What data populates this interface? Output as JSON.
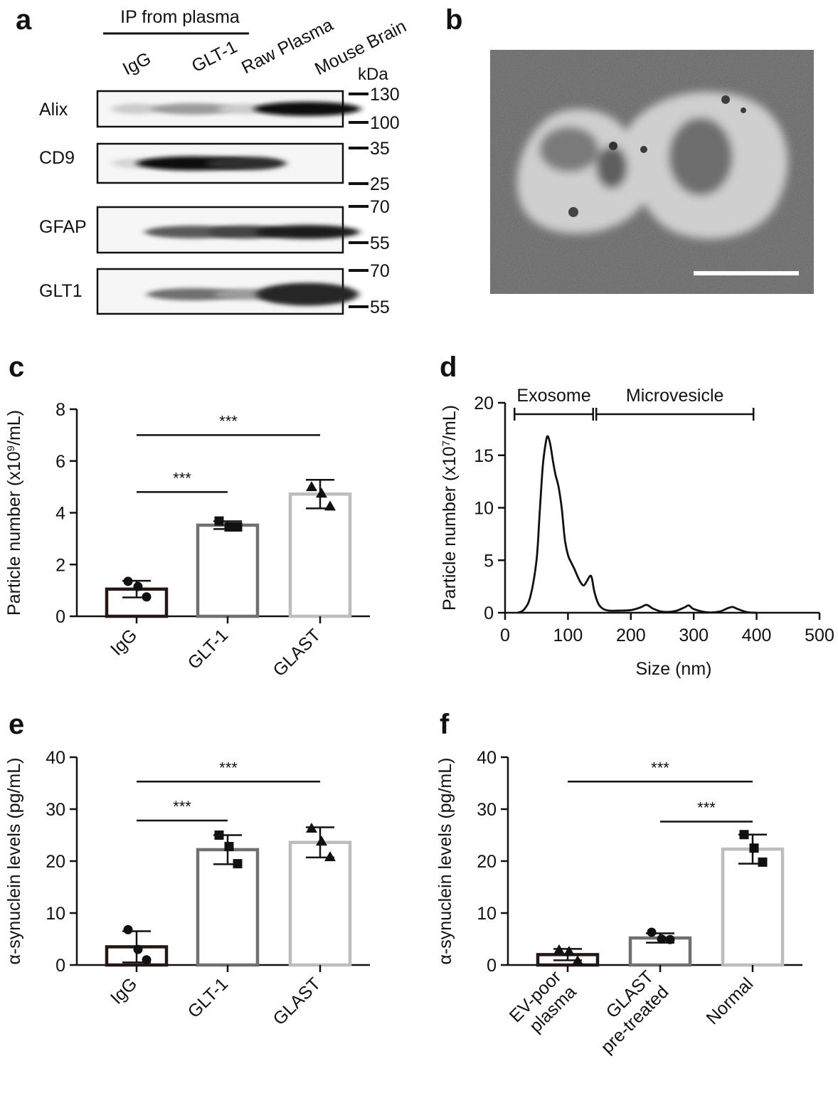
{
  "panels": {
    "a": "a",
    "b": "b",
    "c": "c",
    "d": "d",
    "e": "e",
    "f": "f"
  },
  "western_blot": {
    "header": "IP from plasma",
    "lanes": [
      "IgG",
      "GLT-1",
      "Raw Plasma",
      "Mouse Brain"
    ],
    "unit": "kDa",
    "blots": [
      {
        "name": "Alix",
        "markers": [
          "130",
          "100"
        ],
        "band_intensity": [
          0.12,
          0.35,
          0.12,
          1.0
        ]
      },
      {
        "name": "CD9",
        "markers": [
          "35",
          "25"
        ],
        "band_intensity": [
          0.08,
          1.0,
          0.85,
          0.0
        ]
      },
      {
        "name": "GFAP",
        "markers": [
          "70",
          "55"
        ],
        "band_intensity": [
          0.0,
          0.65,
          0.75,
          0.95
        ]
      },
      {
        "name": "GLT1",
        "markers": [
          "70",
          "55"
        ],
        "band_intensity": [
          0.0,
          0.55,
          0.35,
          0.9
        ]
      }
    ]
  },
  "em_image": {
    "description_colors": {
      "background": "#5a5a5a",
      "vesicle": "#d8d8d8",
      "scale_bar": "#ffffff"
    }
  },
  "chart_data": [
    {
      "panel": "c",
      "type": "bar",
      "categories": [
        "IgG",
        "GLT-1",
        "GLAST"
      ],
      "values": [
        1.05,
        3.52,
        4.72
      ],
      "errors": [
        0.32,
        0.15,
        0.55
      ],
      "points": [
        [
          1.35,
          1.15,
          0.75
        ],
        [
          3.68,
          3.45,
          3.45
        ],
        [
          5.0,
          4.75,
          4.25
        ]
      ],
      "markers": [
        "circle",
        "square",
        "triangle"
      ],
      "ylabel_main": "Particle number (x10",
      "ylabel_sup": "9",
      "ylabel_tail": "/mL)",
      "ylim": [
        0,
        8
      ],
      "yticks": [
        "0",
        "2",
        "4",
        "6",
        "8"
      ],
      "bar_colors": [
        "#231815",
        "#707070",
        "#bdbdbd"
      ],
      "significance": [
        {
          "label": "***",
          "from": 0,
          "to": 1,
          "y": 4.8
        },
        {
          "label": "***",
          "from": 0,
          "to": 2,
          "y": 7.0
        }
      ]
    },
    {
      "panel": "d",
      "type": "line",
      "xlabel": "Size (nm)",
      "ylabel_main": "Particle number (x10",
      "ylabel_sup": "7",
      "ylabel_tail": "/mL)",
      "xlim": [
        0,
        500
      ],
      "ylim": [
        0,
        20
      ],
      "xticks": [
        "0",
        "100",
        "200",
        "300",
        "400",
        "500"
      ],
      "yticks": [
        "0",
        "5",
        "10",
        "15",
        "20"
      ],
      "x": [
        20,
        30,
        40,
        50,
        55,
        60,
        65,
        68,
        72,
        76,
        80,
        85,
        90,
        95,
        100,
        105,
        110,
        115,
        120,
        125,
        130,
        135,
        138,
        142,
        148,
        155,
        165,
        180,
        200,
        215,
        225,
        235,
        250,
        270,
        285,
        292,
        300,
        320,
        340,
        355,
        362,
        370,
        385,
        400
      ],
      "y": [
        0,
        0.3,
        1.5,
        5.0,
        9.5,
        14.0,
        16.3,
        16.8,
        16.0,
        14.5,
        13.2,
        12.0,
        10.0,
        7.0,
        5.5,
        4.8,
        4.2,
        3.5,
        2.9,
        2.6,
        3.0,
        3.5,
        3.3,
        2.0,
        0.9,
        0.4,
        0.2,
        0.2,
        0.25,
        0.5,
        0.75,
        0.4,
        0.1,
        0.15,
        0.5,
        0.7,
        0.35,
        0.05,
        0.1,
        0.45,
        0.55,
        0.35,
        0.05,
        0
      ],
      "ranges": [
        {
          "label": "Exosome",
          "from": 15,
          "to": 140
        },
        {
          "label": "Microvesicle",
          "from": 145,
          "to": 395
        }
      ]
    },
    {
      "panel": "e",
      "type": "bar",
      "categories": [
        "IgG",
        "GLT-1",
        "GLAST"
      ],
      "values": [
        3.5,
        22.2,
        23.6
      ],
      "errors": [
        3.0,
        2.8,
        2.9
      ],
      "points": [
        [
          6.8,
          3.0,
          1.0
        ],
        [
          25.0,
          22.8,
          19.5
        ],
        [
          26.3,
          23.8,
          20.8
        ]
      ],
      "markers": [
        "circle",
        "square",
        "triangle"
      ],
      "ylabel_main": "α-synuclein levels (pg/mL)",
      "ylabel_sup": "",
      "ylabel_tail": "",
      "ylim": [
        0,
        40
      ],
      "yticks": [
        "0",
        "10",
        "20",
        "30",
        "40"
      ],
      "bar_colors": [
        "#231815",
        "#707070",
        "#bdbdbd"
      ],
      "significance": [
        {
          "label": "***",
          "from": 0,
          "to": 1,
          "y": 27.8
        },
        {
          "label": "***",
          "from": 0,
          "to": 2,
          "y": 35.3
        }
      ]
    },
    {
      "panel": "f",
      "type": "bar",
      "categories": [
        "EV-poor\nplasma",
        "GLAST\npre-treated",
        "Normal"
      ],
      "values": [
        2.0,
        5.2,
        22.3
      ],
      "errors": [
        1.1,
        0.9,
        2.8
      ],
      "points": [
        [
          2.9,
          2.6,
          0.8
        ],
        [
          6.3,
          5.0,
          4.9
        ],
        [
          25.1,
          22.5,
          19.8
        ]
      ],
      "markers": [
        "triangle",
        "circle",
        "square"
      ],
      "ylabel_main": "α-synuclein levels (pg/mL)",
      "ylabel_sup": "",
      "ylabel_tail": "",
      "ylim": [
        0,
        40
      ],
      "yticks": [
        "0",
        "10",
        "20",
        "30",
        "40"
      ],
      "bar_colors": [
        "#231815",
        "#707070",
        "#bdbdbd"
      ],
      "significance": [
        {
          "label": "***",
          "from": 0,
          "to": 2,
          "y": 35.3
        },
        {
          "label": "***",
          "from": 1,
          "to": 2,
          "y": 27.6
        }
      ]
    }
  ]
}
